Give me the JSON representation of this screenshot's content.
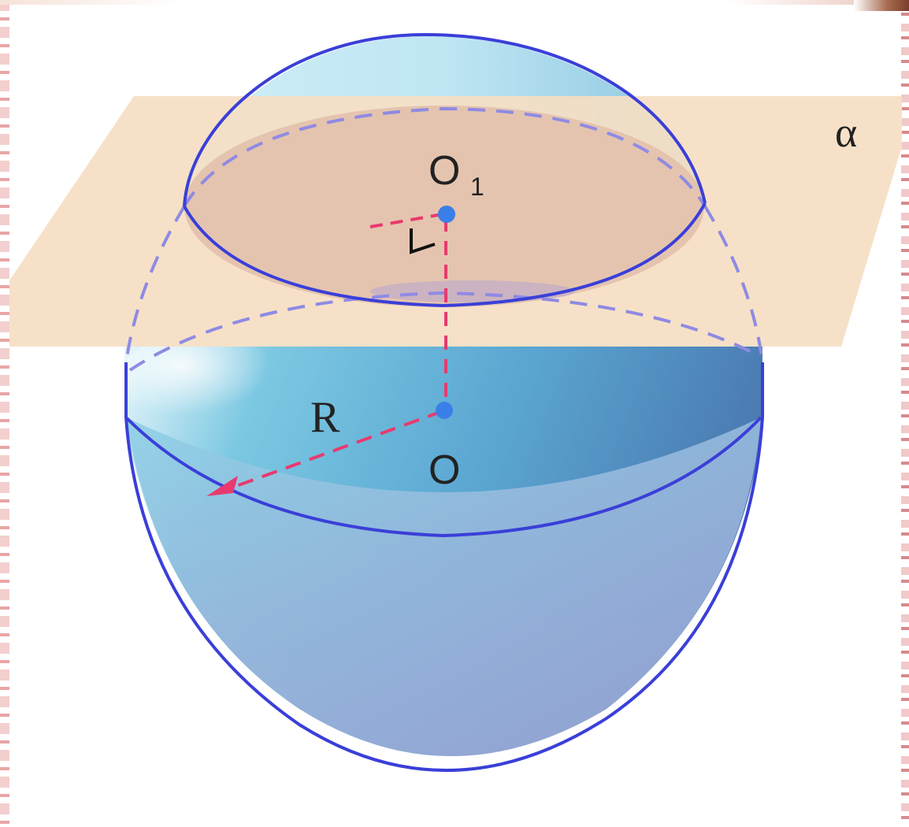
{
  "labels": {
    "plane": "α",
    "center_top": "O",
    "center_top_sub": "1",
    "center": "O",
    "radius": "R"
  },
  "colors": {
    "plane": "#f5dfc4",
    "outline": "#3a3fd8",
    "dashed_outline": "#8a86e6",
    "sphere_light": "#e4f5fb",
    "sphere_mid": "#6fb9da",
    "sphere_dark": "#4d7fb8",
    "accent_line": "#e83a6e",
    "point": "#3a7fe8"
  }
}
